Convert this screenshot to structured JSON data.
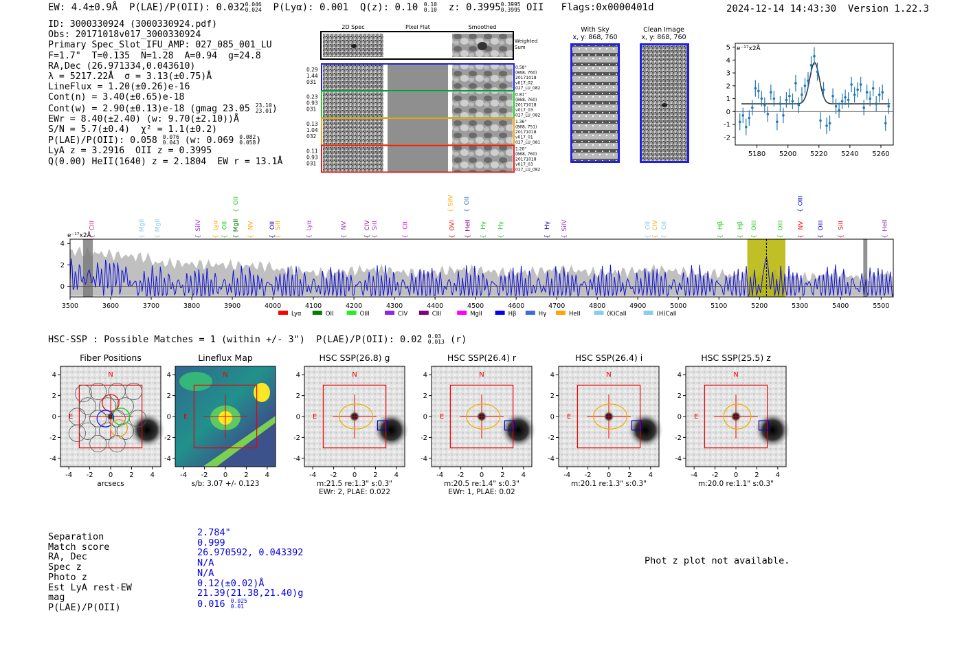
{
  "header": {
    "ew": "EW: 4.4±0.9Å",
    "plae_label": "P(LAE)/P(OII): 0.032",
    "plae_hi": "0.046",
    "plae_lo": "0.024",
    "plya": "P(Lyα): 0.001",
    "qz_label": "Q(z): 0.10",
    "qz_hi": "0.10",
    "qz_lo": "0.10",
    "z_label": "z: 0.3995",
    "z_hi": "0.3995",
    "z_lo": "0.3995",
    "z_line": "OII",
    "flags": "Flags:0x0000401d",
    "datestamp": "2024-12-14 14:43:30",
    "version": "Version 1.22.3"
  },
  "info": {
    "id": "ID: 3000330924 (3000330924.pdf)",
    "obs": "Obs: 20171018v017_3000330924",
    "primary": "Primary Spec_Slot_IFU_AMP: 027_085_001_LU",
    "fwhm": "F=1.7\"  T=0.135  N=1.28  A=0.94  g=24.8",
    "radec": "RA,Dec (26.971334,0.043610)",
    "lambda": "λ = 5217.22Å  σ = 3.13(±0.75)Å",
    "lineflux": "LineFlux = 1.20(±0.26)e-16",
    "contn": "Cont(n) = 3.40(±0.65)e-18",
    "contw": "Cont(w) = 2.90(±0.13)e-18 (gmag 23.05",
    "contw_hi": "23.10",
    "contw_lo": "23.01",
    "ewr": "EWr = 8.40(±2.40) (w: 9.70(±2.10))Å",
    "sn": "S/N = 5.7(±0.4)  χ² = 1.1(±0.2)",
    "plae": "P(LAE)/P(OII): 0.058",
    "plae_hi": "0.076",
    "plae_lo": "0.043",
    "plae_w": "(w: 0.069",
    "plae_w_hi": "0.082",
    "plae_w_lo": "0.058",
    "lya": "LyA z = 3.2916  OII z = 0.3995",
    "qheii": "Q(0.00) HeII(1640) z = 2.1804  EW r = 13.1Å"
  },
  "cutouts": {
    "col_2d": "2D Spec",
    "col_flat": "Pixel Flat",
    "col_smooth": "Smoothed",
    "weighted": "Weighted Sum",
    "rows": [
      {
        "w": "0.29",
        "n": "1.44",
        "f": "031",
        "dist": "0.58\"",
        "xy": "(868, 760)",
        "date": "20171018",
        "v": "v017_02",
        "amp": "027_LU_082"
      },
      {
        "w": "0.23",
        "n": "0.93",
        "f": "031",
        "dist": "0.81\"",
        "xy": "(868, 760)",
        "date": "20171018",
        "v": "v017_03",
        "amp": "027_LU_082"
      },
      {
        "w": "0.13",
        "n": "1.04",
        "f": "032",
        "dist": "1.36\"",
        "xy": "(868, 751)",
        "date": "20171018",
        "v": "v017_01",
        "amp": "027_LU_081"
      },
      {
        "w": "0.11",
        "n": "0.93",
        "f": "031",
        "dist": "1.20\"",
        "xy": "(868, 760)",
        "date": "20171018",
        "v": "v017_03",
        "amp": "027_LU_082"
      }
    ],
    "with_sky_title": "With Sky",
    "with_sky_xy": "x, y: 868, 760",
    "clean_title": "Clean Image",
    "clean_xy": "x, y: 868, 760"
  },
  "colors": {
    "blue": "#1f1fe6",
    "green": "#22cc22",
    "orange": "#f0a020",
    "red": "#e02020",
    "plot_blue": "#1f77b4",
    "olive": "#b5b500"
  },
  "chart_data": [
    {
      "type": "scatter",
      "name": "line-fit",
      "title": "",
      "ylabel_exp": "e⁻¹⁷x2Å",
      "xlim": [
        5166,
        5268
      ],
      "ylim": [
        -2.6,
        5.3
      ],
      "xticks": [
        5180,
        5200,
        5220,
        5240,
        5260
      ],
      "yticks": [
        -2,
        -1,
        0,
        1,
        2,
        3,
        4,
        5
      ],
      "x": [
        5169,
        5171,
        5173,
        5175,
        5177,
        5179,
        5181,
        5183,
        5185,
        5187,
        5189,
        5191,
        5193,
        5195,
        5197,
        5199,
        5201,
        5203,
        5205,
        5207,
        5209,
        5211,
        5213,
        5215,
        5217,
        5219,
        5221,
        5223,
        5225,
        5227,
        5229,
        5231,
        5233,
        5235,
        5237,
        5239,
        5241,
        5243,
        5245,
        5247,
        5249,
        5251,
        5253,
        5255,
        5257,
        5259,
        5261,
        5263,
        5265
      ],
      "y": [
        -0.8,
        -0.3,
        -1.2,
        -0.5,
        0.3,
        1.8,
        1.6,
        1.0,
        0.5,
        -0.2,
        1.5,
        1.0,
        -0.8,
        0.6,
        -0.3,
        0.9,
        1.2,
        0.8,
        2.2,
        0.5,
        1.3,
        2.0,
        2.4,
        3.6,
        4.3,
        3.1,
        -0.7,
        1.7,
        -1.1,
        -0.9,
        1.2,
        0.4,
        0.1,
        0.8,
        1.1,
        0.9,
        2.1,
        1.3,
        1.7,
        2.1,
        0.3,
        1.5,
        1.0,
        1.8,
        0.6,
        1.3,
        1.5,
        -0.9,
        0.4
      ],
      "err": [
        0.65,
        0.6,
        0.65,
        0.6,
        0.6,
        0.65,
        0.6,
        0.6,
        0.6,
        0.6,
        0.6,
        0.6,
        0.65,
        0.6,
        0.6,
        0.6,
        0.6,
        0.6,
        0.65,
        0.6,
        0.6,
        0.6,
        0.65,
        0.7,
        0.7,
        0.7,
        0.65,
        0.6,
        0.65,
        0.6,
        0.6,
        0.6,
        0.6,
        0.6,
        0.6,
        0.6,
        0.6,
        0.6,
        0.6,
        0.6,
        0.6,
        0.6,
        0.6,
        0.6,
        0.6,
        0.6,
        0.6,
        0.6,
        0.6
      ],
      "fit": {
        "continuum": 0.6,
        "amplitude": 3.2,
        "center": 5217.2,
        "sigma": 3.13,
        "xstart": 5170,
        "xend": 5266
      }
    },
    {
      "type": "line",
      "name": "full-spectrum",
      "ylabel_exp": "e⁻¹⁷x2Å",
      "xlim": [
        3500,
        5530
      ],
      "ylim": [
        -1.0,
        4.4
      ],
      "xticks": [
        3500,
        3600,
        3700,
        3800,
        3900,
        4000,
        4100,
        4200,
        4300,
        4400,
        4500,
        4600,
        4700,
        4800,
        4900,
        5000,
        5100,
        5200,
        5300,
        5400,
        5500
      ],
      "yticks": [
        0,
        2,
        4
      ],
      "highlight_range": [
        5170,
        5264
      ],
      "highlight_center": 5217.2,
      "masked": [
        [
          3532,
          3556
        ],
        [
          5456,
          5466
        ]
      ],
      "line_markers": [
        {
          "name": "CIII",
          "x": 3553,
          "color": "#c71585"
        },
        {
          "name": "MgII",
          "x": 3676,
          "color": "#87ceeb"
        },
        {
          "name": "MgII",
          "x": 3715,
          "color": "#87ceeb"
        },
        {
          "name": "SiIV",
          "x": 3815,
          "color": "#9932cc"
        },
        {
          "name": "Lyα",
          "x": 3858,
          "color": "#ffa500"
        },
        {
          "name": "OII",
          "x": 3880,
          "color": "#22cc22"
        },
        {
          "name": "MgII",
          "x": 3908,
          "color": "#008000"
        },
        {
          "name": "NV",
          "x": 3945,
          "color": "#ffa500"
        },
        {
          "name": "OII",
          "x": 3998,
          "color": "#0000cc"
        },
        {
          "name": "SiII",
          "x": 4012,
          "color": "#ffa500"
        },
        {
          "name": "Lyα",
          "x": 4089,
          "color": "#9932cc"
        },
        {
          "name": "NV",
          "x": 4174,
          "color": "#9932cc"
        },
        {
          "name": "CIV",
          "x": 4232,
          "color": "#8b008b"
        },
        {
          "name": "SiII",
          "x": 4251,
          "color": "#9932cc"
        },
        {
          "name": "CII",
          "x": 4326,
          "color": "#ff00ff"
        },
        {
          "name": "OVI",
          "x": 4441,
          "color": "#ff0000"
        },
        {
          "name": "HeII",
          "x": 4480,
          "color": "#8b008b"
        },
        {
          "name": "Hγ",
          "x": 4518,
          "color": "#22cc22"
        },
        {
          "name": "Hγ",
          "x": 4562,
          "color": "#22cc22"
        },
        {
          "name": "Hγ",
          "x": 4676,
          "color": "#0000cc"
        },
        {
          "name": "SiIV",
          "x": 4718,
          "color": "#9932cc"
        },
        {
          "name": "OII",
          "x": 4924,
          "color": "#87ceeb"
        },
        {
          "name": "CIV",
          "x": 4942,
          "color": "#ffa500"
        },
        {
          "name": "OII",
          "x": 4964,
          "color": "#87ceeb"
        },
        {
          "name": "Hβ",
          "x": 5103,
          "color": "#22cc22"
        },
        {
          "name": "Hβ",
          "x": 5152,
          "color": "#22cc22"
        },
        {
          "name": "OIII",
          "x": 5186,
          "color": "#22cc22"
        },
        {
          "name": "OIII",
          "x": 5251,
          "color": "#22cc22"
        },
        {
          "name": "NV",
          "x": 5301,
          "color": "#ff0000"
        },
        {
          "name": "OIII",
          "x": 5350,
          "color": "#0000cc"
        },
        {
          "name": "SiII",
          "x": 5400,
          "color": "#ff0000"
        },
        {
          "name": "HeII",
          "x": 5509,
          "color": "#9932cc"
        }
      ],
      "top_markers": [
        {
          "name": "OII",
          "x": 3908,
          "color": "#22cc22"
        },
        {
          "name": "SiIV",
          "x": 4438,
          "color": "#ffa500"
        },
        {
          "name": "OII",
          "x": 4478,
          "color": "#1f77b4"
        },
        {
          "name": "OIII",
          "x": 5300,
          "color": "#0000cc"
        }
      ],
      "legend": [
        {
          "name": "Lyα",
          "color": "#ff0000"
        },
        {
          "name": "OII",
          "color": "#008000"
        },
        {
          "name": "OIII",
          "color": "#22ee22"
        },
        {
          "name": "CIV",
          "color": "#8a2be2"
        },
        {
          "name": "CIII",
          "color": "#800080"
        },
        {
          "name": "MgII",
          "color": "#ff00ff"
        },
        {
          "name": "Hβ",
          "color": "#0000ff"
        },
        {
          "name": "Hγ",
          "color": "#4169e1"
        },
        {
          "name": "HeII",
          "color": "#ffa500"
        },
        {
          "name": "(K)CaII",
          "color": "#87ceeb"
        },
        {
          "name": "(H)CaII",
          "color": "#87ceeb"
        }
      ]
    }
  ],
  "hsc": {
    "header": "HSC-SSP : Possible Matches = 1 (within +/- 3\")  P(LAE)/P(OII): 0.02",
    "header_hi": "0.03",
    "header_lo": "0.013",
    "header_tail": "(r)",
    "axis_ticks": [
      -4,
      -2,
      0,
      2,
      4
    ],
    "north": "N",
    "east": "E",
    "panels": [
      {
        "title": "Fiber Positions",
        "caption1": "arcsecs",
        "caption2": ""
      },
      {
        "title": "Lineflux Map",
        "caption1": "s/b: 3.07 +/- 0.123",
        "caption2": ""
      },
      {
        "title": "HSC SSP(26.8) g",
        "caption1": "m:21.5  re:1.3\"  s:0.3\"",
        "caption2": "EWr: 2, PLAE: 0.022"
      },
      {
        "title": "HSC SSP(26.4) r",
        "caption1": "m:20.5  re:1.4\"  s:0.3\"",
        "caption2": "EWr: 1, PLAE: 0.02"
      },
      {
        "title": "HSC SSP(26.4) i",
        "caption1": "m:20.1  re:1.3\"  s:0.3\"",
        "caption2": ""
      },
      {
        "title": "HSC SSP(25.5) z",
        "caption1": "m:20.0  re:1.1\"  s:0.3\"",
        "caption2": ""
      }
    ]
  },
  "match": {
    "labels": [
      "Separation",
      "Match score",
      "RA, Dec",
      "Spec z",
      "Photo z",
      "Est LyA rest-EW",
      "mag",
      "P(LAE)/P(OII)"
    ],
    "separation": "2.784\"",
    "score": "0.999",
    "radec": "26.970592, 0.043392",
    "specz": "N/A",
    "photoz": "N/A",
    "lya_ew": "0.12(±0.02)Å",
    "mag": "21.39(21.38,21.40)g",
    "plae": "0.016",
    "plae_hi": "0.025",
    "plae_lo": "0.01"
  },
  "photz_message": "Phot z plot not available."
}
